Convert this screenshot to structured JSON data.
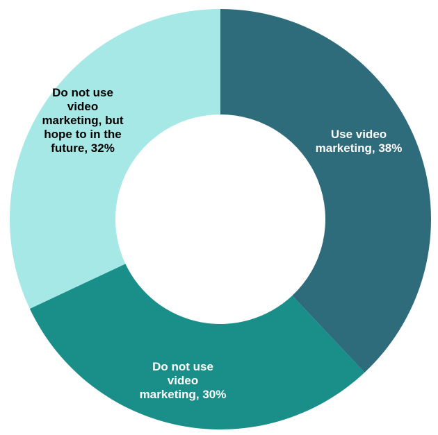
{
  "chart_data": {
    "type": "pie",
    "title": "",
    "donut": true,
    "slices": [
      {
        "label_lines": [
          "Use video",
          "marketing, 38%"
        ],
        "value": 38,
        "color": "#2e6b7b",
        "label_color": "#ffffff"
      },
      {
        "label_lines": [
          "Do not use",
          "video",
          "marketing, 30%"
        ],
        "value": 30,
        "color": "#1a8f8a",
        "label_color": "#ffffff"
      },
      {
        "label_lines": [
          "Do not use",
          "video",
          "marketing, but",
          "hope to in the",
          "future, 32%"
        ],
        "value": 32,
        "color": "#a5e8e6",
        "label_color": "#000000"
      }
    ]
  }
}
